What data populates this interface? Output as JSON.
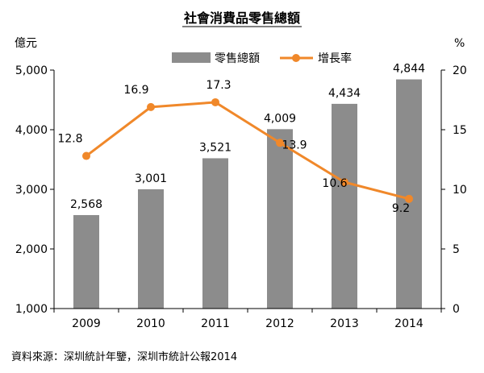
{
  "chart_data": {
    "type": "bar+line",
    "title": "社會消費品零售總額",
    "categories": [
      "2009",
      "2010",
      "2011",
      "2012",
      "2013",
      "2014"
    ],
    "series": [
      {
        "name": "零售總額",
        "type": "bar",
        "axis": "left",
        "values": [
          2568,
          3001,
          3521,
          4009,
          4434,
          4844
        ],
        "labels": [
          "2,568",
          "3,001",
          "3,521",
          "4,009",
          "4,434",
          "4,844"
        ]
      },
      {
        "name": "增長率",
        "type": "line",
        "axis": "right",
        "values": [
          12.8,
          16.9,
          17.3,
          13.9,
          10.6,
          9.2
        ],
        "labels": [
          "12.8",
          "16.9",
          "17.3",
          "13.9",
          "10.6",
          "9.2"
        ]
      }
    ],
    "y_left": {
      "label": "億元",
      "min": 1000,
      "max": 5000,
      "ticks": [
        1000,
        2000,
        3000,
        4000,
        5000
      ],
      "tick_labels": [
        "1,000",
        "2,000",
        "3,000",
        "4,000",
        "5,000"
      ]
    },
    "y_right": {
      "label": "%",
      "min": 0,
      "max": 20,
      "ticks": [
        0,
        5,
        10,
        15,
        20
      ],
      "tick_labels": [
        "0",
        "5",
        "10",
        "15",
        "20"
      ]
    },
    "grid": false,
    "legend": "top",
    "colors": {
      "bar": "#8c8c8c",
      "line": "#f0882a",
      "axis": "#000000"
    }
  },
  "footer": {
    "source": "資料來源：深圳統計年鑒，深圳市統計公報2014"
  }
}
